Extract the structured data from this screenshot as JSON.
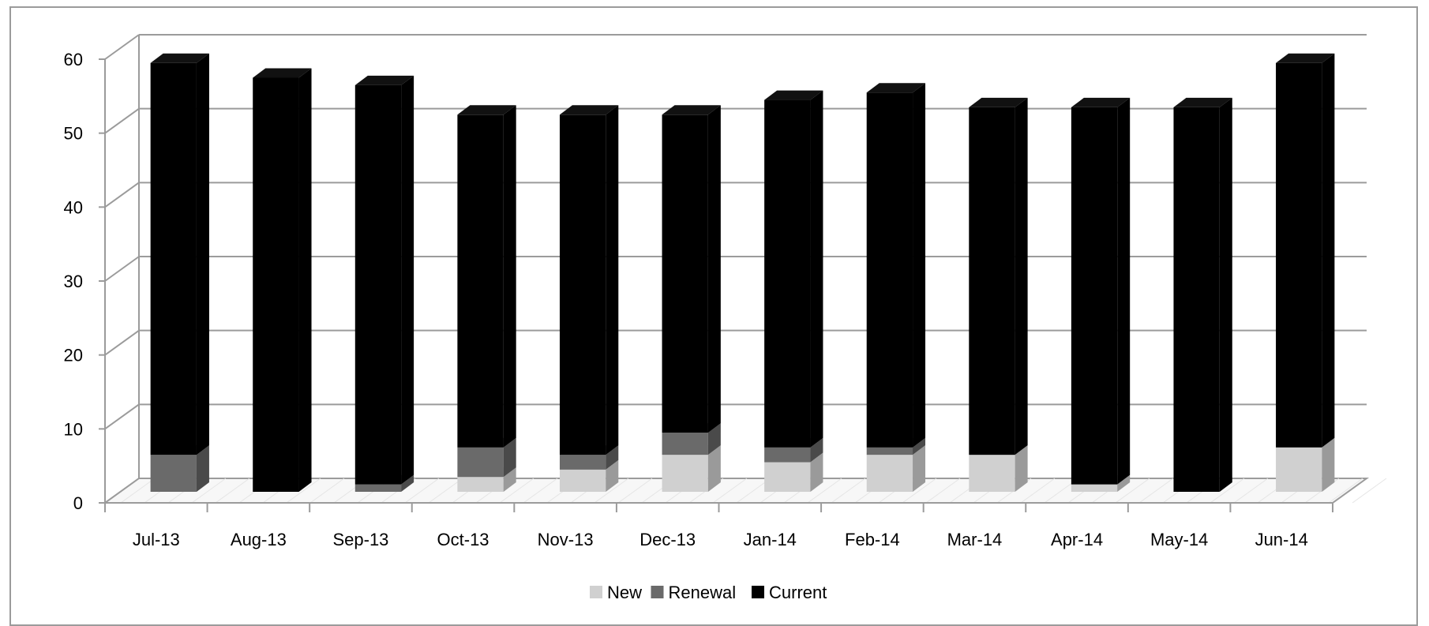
{
  "chart_data": {
    "type": "bar",
    "stacked": true,
    "style": "3d",
    "categories": [
      "Jul-13",
      "Aug-13",
      "Sep-13",
      "Oct-13",
      "Nov-13",
      "Dec-13",
      "Jan-14",
      "Feb-14",
      "Mar-14",
      "Apr-14",
      "May-14",
      "Jun-14"
    ],
    "series": [
      {
        "name": "New",
        "color": "#d0d0d0",
        "side": "#9a9a9a",
        "top": "#e6e6e6",
        "values": [
          0,
          0,
          0,
          2,
          3,
          5,
          4,
          5,
          5,
          1,
          0,
          6
        ]
      },
      {
        "name": "Renewal",
        "color": "#6a6a6a",
        "side": "#4a4a4a",
        "top": "#7d7d7d",
        "values": [
          5,
          0,
          1,
          4,
          2,
          3,
          2,
          1,
          0,
          0,
          0,
          0
        ]
      },
      {
        "name": "Current",
        "color": "#000000",
        "side": "#000000",
        "top": "#111111",
        "values": [
          53,
          56,
          54,
          45,
          46,
          43,
          47,
          48,
          47,
          51,
          52,
          52
        ]
      }
    ],
    "ylim": [
      0,
      60
    ],
    "yticks": [
      "0",
      "10",
      "20",
      "30",
      "40",
      "50",
      "60"
    ],
    "grid": true,
    "legend": "bottom-center"
  }
}
